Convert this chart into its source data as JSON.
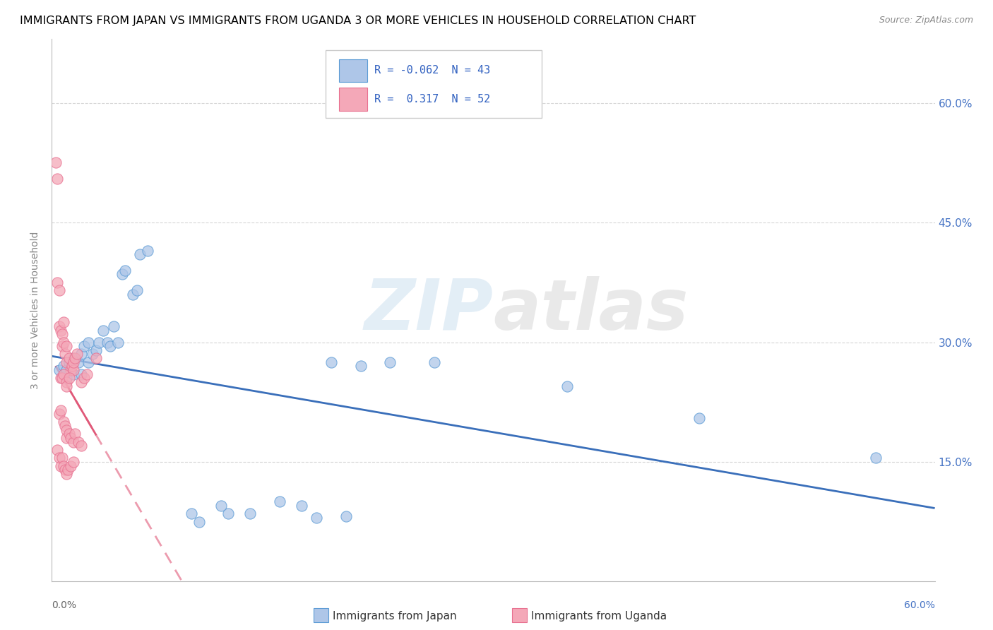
{
  "title": "IMMIGRANTS FROM JAPAN VS IMMIGRANTS FROM UGANDA 3 OR MORE VEHICLES IN HOUSEHOLD CORRELATION CHART",
  "source": "Source: ZipAtlas.com",
  "ylabel": "3 or more Vehicles in Household",
  "right_yticks": [
    "15.0%",
    "30.0%",
    "45.0%",
    "60.0%"
  ],
  "right_ytick_vals": [
    0.15,
    0.3,
    0.45,
    0.6
  ],
  "xlim": [
    0.0,
    0.6
  ],
  "ylim": [
    0.0,
    0.68
  ],
  "legend_japan_R": "-0.062",
  "legend_japan_N": "43",
  "legend_uganda_R": "0.317",
  "legend_uganda_N": "52",
  "watermark_zip": "ZIP",
  "watermark_atlas": "atlas",
  "japan_fill": "#aec6e8",
  "uganda_fill": "#f4a8b8",
  "japan_edge": "#5b9bd5",
  "uganda_edge": "#e87090",
  "japan_line": "#3a6fba",
  "uganda_line": "#e05878",
  "japan_scatter": [
    [
      0.005,
      0.265
    ],
    [
      0.008,
      0.27
    ],
    [
      0.01,
      0.255
    ],
    [
      0.01,
      0.265
    ],
    [
      0.012,
      0.275
    ],
    [
      0.015,
      0.26
    ],
    [
      0.015,
      0.28
    ],
    [
      0.018,
      0.275
    ],
    [
      0.02,
      0.26
    ],
    [
      0.02,
      0.285
    ],
    [
      0.022,
      0.295
    ],
    [
      0.025,
      0.3
    ],
    [
      0.025,
      0.275
    ],
    [
      0.028,
      0.285
    ],
    [
      0.03,
      0.29
    ],
    [
      0.032,
      0.3
    ],
    [
      0.035,
      0.315
    ],
    [
      0.038,
      0.3
    ],
    [
      0.04,
      0.295
    ],
    [
      0.042,
      0.32
    ],
    [
      0.045,
      0.3
    ],
    [
      0.048,
      0.385
    ],
    [
      0.05,
      0.39
    ],
    [
      0.06,
      0.41
    ],
    [
      0.065,
      0.415
    ],
    [
      0.055,
      0.36
    ],
    [
      0.058,
      0.365
    ],
    [
      0.12,
      0.085
    ],
    [
      0.135,
      0.085
    ],
    [
      0.155,
      0.1
    ],
    [
      0.17,
      0.095
    ],
    [
      0.18,
      0.08
    ],
    [
      0.2,
      0.082
    ],
    [
      0.095,
      0.085
    ],
    [
      0.1,
      0.075
    ],
    [
      0.115,
      0.095
    ],
    [
      0.19,
      0.275
    ],
    [
      0.21,
      0.27
    ],
    [
      0.23,
      0.275
    ],
    [
      0.26,
      0.275
    ],
    [
      0.35,
      0.245
    ],
    [
      0.44,
      0.205
    ],
    [
      0.56,
      0.155
    ]
  ],
  "uganda_scatter": [
    [
      0.003,
      0.525
    ],
    [
      0.004,
      0.505
    ],
    [
      0.004,
      0.375
    ],
    [
      0.005,
      0.365
    ],
    [
      0.005,
      0.32
    ],
    [
      0.006,
      0.315
    ],
    [
      0.007,
      0.31
    ],
    [
      0.008,
      0.325
    ],
    [
      0.007,
      0.295
    ],
    [
      0.008,
      0.3
    ],
    [
      0.009,
      0.285
    ],
    [
      0.01,
      0.295
    ],
    [
      0.01,
      0.275
    ],
    [
      0.012,
      0.28
    ],
    [
      0.013,
      0.265
    ],
    [
      0.014,
      0.27
    ],
    [
      0.015,
      0.265
    ],
    [
      0.015,
      0.275
    ],
    [
      0.016,
      0.28
    ],
    [
      0.017,
      0.285
    ],
    [
      0.006,
      0.255
    ],
    [
      0.007,
      0.255
    ],
    [
      0.008,
      0.26
    ],
    [
      0.01,
      0.25
    ],
    [
      0.01,
      0.245
    ],
    [
      0.012,
      0.255
    ],
    [
      0.005,
      0.21
    ],
    [
      0.006,
      0.215
    ],
    [
      0.008,
      0.2
    ],
    [
      0.009,
      0.195
    ],
    [
      0.01,
      0.19
    ],
    [
      0.01,
      0.18
    ],
    [
      0.012,
      0.185
    ],
    [
      0.013,
      0.18
    ],
    [
      0.015,
      0.175
    ],
    [
      0.016,
      0.185
    ],
    [
      0.018,
      0.175
    ],
    [
      0.02,
      0.17
    ],
    [
      0.004,
      0.165
    ],
    [
      0.005,
      0.155
    ],
    [
      0.006,
      0.145
    ],
    [
      0.007,
      0.155
    ],
    [
      0.008,
      0.145
    ],
    [
      0.009,
      0.14
    ],
    [
      0.01,
      0.135
    ],
    [
      0.011,
      0.14
    ],
    [
      0.013,
      0.145
    ],
    [
      0.015,
      0.15
    ],
    [
      0.02,
      0.25
    ],
    [
      0.022,
      0.255
    ],
    [
      0.024,
      0.26
    ],
    [
      0.03,
      0.28
    ]
  ]
}
